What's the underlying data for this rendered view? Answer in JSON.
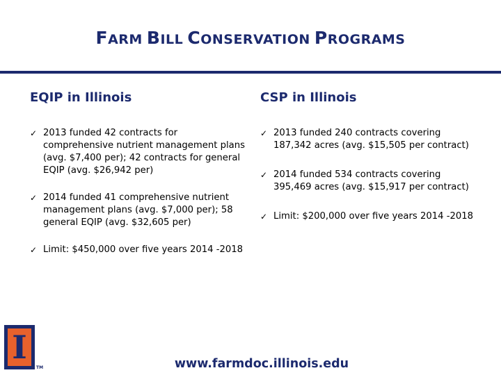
{
  "slide": {
    "title": "Farm Bill Conservation Programs",
    "left": {
      "heading": "EQIP in Illinois",
      "bullets": [
        "2013 funded 42 contracts for comprehensive nutrient management plans (avg. $7,400 per); 42 contracts for general EQIP (avg. $26,942 per)",
        "2014 funded 41 comprehensive nutrient management plans (avg. $7,000 per); 58 general EQIP (avg. $32,605 per)",
        "Limit:  $450,000 over five years 2014 -2018"
      ]
    },
    "right": {
      "heading": "CSP in Illinois",
      "bullets": [
        "2013 funded 240 contracts covering 187,342 acres (avg. $15,505 per contract)",
        "2014 funded 534 contracts covering 395,469 acres (avg. $15,917 per contract)",
        "Limit:  $200,000 over five years 2014 -2018"
      ]
    },
    "footer_url": "www.farmdoc.illinois.edu",
    "logo": {
      "letter": "I",
      "trademark": "TM"
    },
    "bullet_glyph": "ü",
    "colors": {
      "navy": "#1c2a6e",
      "orange": "#e8612c"
    }
  }
}
